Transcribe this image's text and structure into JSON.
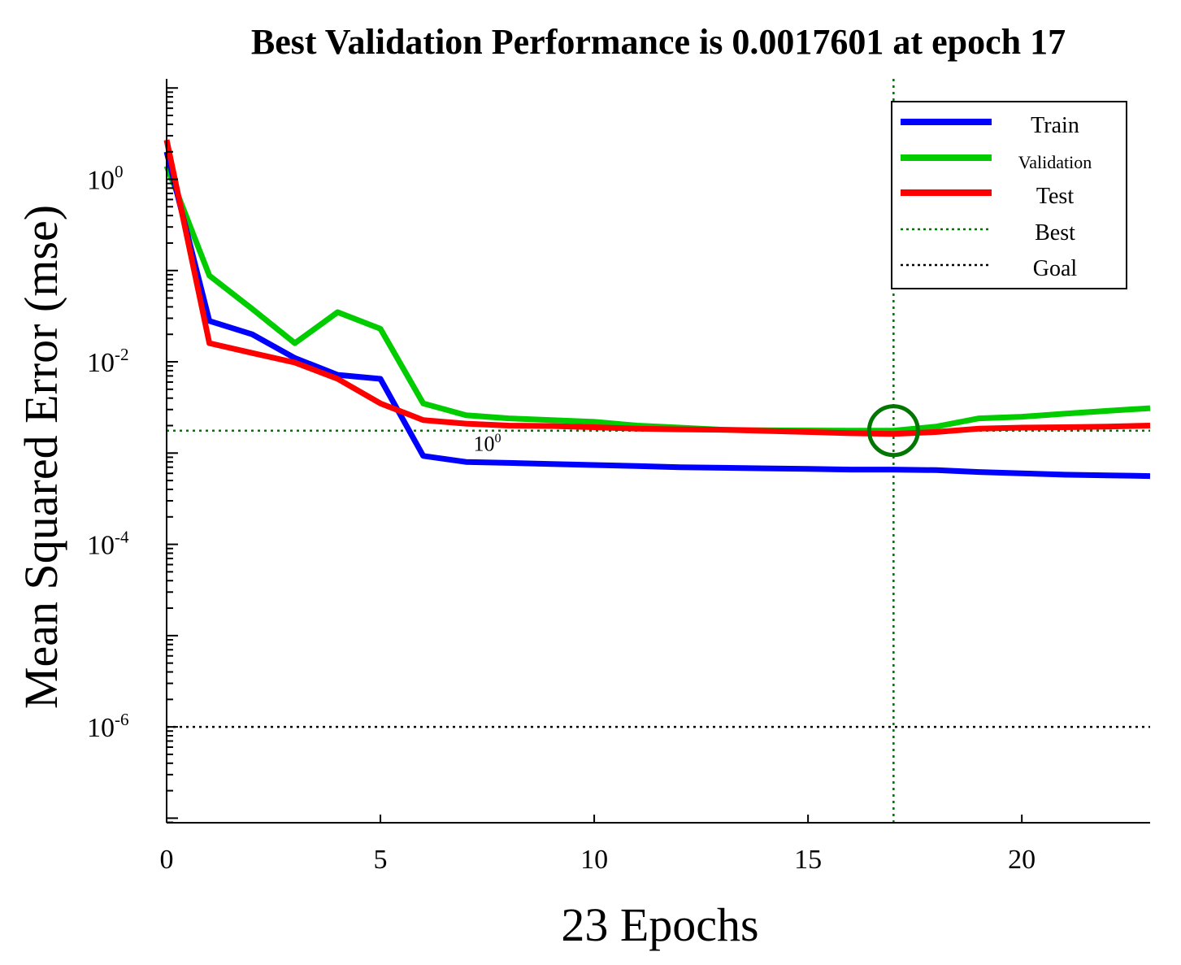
{
  "chart_data": {
    "type": "line",
    "title": "Best Validation Performance is 0.0017601 at epoch 17",
    "xlabel": "23 Epochs",
    "ylabel": "Mean Squared Error  (mse)",
    "yscale": "log",
    "xlim": [
      0,
      23
    ],
    "ylim_exp": [
      -7.05,
      1.1
    ],
    "x_ticks": [
      {
        "value": 0,
        "label": "0"
      },
      {
        "value": 5,
        "label": "5"
      },
      {
        "value": 10,
        "label": "10"
      },
      {
        "value": 15,
        "label": "15"
      },
      {
        "value": 20,
        "label": "20"
      }
    ],
    "y_ticks": [
      {
        "exp": 0,
        "base": "10",
        "sup": "0"
      },
      {
        "exp": -2,
        "base": "10",
        "sup": "-2"
      },
      {
        "exp": -4,
        "base": "10",
        "sup": "-4"
      },
      {
        "exp": -6,
        "base": "10",
        "sup": "-6"
      }
    ],
    "x": [
      0,
      1,
      2,
      3,
      4,
      5,
      6,
      7,
      8,
      9,
      10,
      11,
      12,
      13,
      14,
      15,
      16,
      17,
      18,
      19,
      20,
      21,
      22,
      23
    ],
    "series": [
      {
        "name": "Train",
        "color": "#0000ff",
        "values": [
          2.0,
          0.028,
          0.02,
          0.011,
          0.0072,
          0.0065,
          0.00093,
          0.0008,
          0.00078,
          0.00076,
          0.00074,
          0.00072,
          0.0007,
          0.00069,
          0.00068,
          0.00067,
          0.00066,
          0.00066,
          0.00065,
          0.00062,
          0.0006,
          0.00058,
          0.00057,
          0.00056
        ]
      },
      {
        "name": "Validation",
        "color": "#00cc00",
        "values": [
          1.4,
          0.088,
          0.038,
          0.016,
          0.035,
          0.023,
          0.0035,
          0.0026,
          0.0024,
          0.0023,
          0.0022,
          0.002,
          0.0019,
          0.0018,
          0.00178,
          0.00177,
          0.00176,
          0.00176,
          0.00195,
          0.0024,
          0.0025,
          0.0027,
          0.0029,
          0.0031
        ]
      },
      {
        "name": "Test",
        "color": "#ff0000",
        "values": [
          2.7,
          0.016,
          0.0125,
          0.0098,
          0.0065,
          0.0035,
          0.0023,
          0.0021,
          0.002,
          0.00198,
          0.00192,
          0.00185,
          0.00182,
          0.0018,
          0.00175,
          0.0017,
          0.00165,
          0.00162,
          0.0017,
          0.00185,
          0.0019,
          0.00192,
          0.00195,
          0.002
        ]
      }
    ],
    "best": {
      "name": "Best",
      "epoch": 17,
      "value": 0.0017601,
      "color": "#007700"
    },
    "goal": {
      "name": "Goal",
      "value": 1e-06,
      "color": "#000000"
    },
    "annotation": {
      "base": "10",
      "sup": "0",
      "x": 7.5,
      "y": 0.00135
    },
    "legend": {
      "position": "top-right",
      "entries": [
        "Train",
        "Validation",
        "Test",
        "Best",
        "Goal"
      ]
    }
  }
}
